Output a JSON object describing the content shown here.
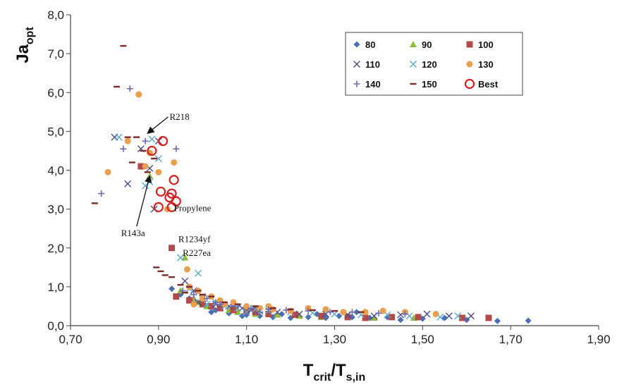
{
  "chart_data": {
    "type": "scatter",
    "title": "",
    "ylabel": {
      "main": "Ja",
      "sub": "opt"
    },
    "xlabel": {
      "main1": "T",
      "sub1": "crit",
      "sep": "/T",
      "sub2": "s,in"
    },
    "xlim": [
      0.7,
      1.9
    ],
    "ylim": [
      0.0,
      8.0
    ],
    "x_ticks": [
      0.7,
      0.9,
      1.1,
      1.3,
      1.5,
      1.7,
      1.9
    ],
    "x_tick_labels": [
      "0,70",
      "0,90",
      "1,10",
      "1,30",
      "1,50",
      "1,70",
      "1,90"
    ],
    "y_ticks": [
      0,
      1,
      2,
      3,
      4,
      5,
      6,
      7,
      8
    ],
    "y_tick_labels": [
      "0,0",
      "1,0",
      "2,0",
      "3,0",
      "4,0",
      "5,0",
      "6,0",
      "7,0",
      "8,0"
    ],
    "grid": false,
    "legend_position": "top-right",
    "series": [
      {
        "name": "80",
        "marker": "diamond",
        "color": "#4a6fb5",
        "points": [
          [
            0.93,
            0.95
          ],
          [
            0.95,
            0.8
          ],
          [
            0.97,
            0.7
          ],
          [
            1.0,
            0.55
          ],
          [
            1.03,
            0.4
          ],
          [
            1.06,
            0.32
          ],
          [
            1.1,
            0.28
          ],
          [
            1.13,
            0.25
          ],
          [
            1.16,
            0.22
          ],
          [
            1.2,
            0.2
          ],
          [
            1.24,
            0.22
          ],
          [
            1.28,
            0.2
          ],
          [
            1.31,
            0.25
          ],
          [
            1.34,
            0.22
          ],
          [
            1.38,
            0.2
          ],
          [
            1.42,
            0.22
          ],
          [
            1.45,
            0.15
          ],
          [
            1.5,
            0.18
          ],
          [
            1.55,
            0.2
          ],
          [
            1.6,
            0.15
          ],
          [
            1.67,
            0.12
          ],
          [
            1.74,
            0.13
          ],
          [
            1.07,
            0.5
          ],
          [
            1.12,
            0.45
          ],
          [
            1.18,
            0.3
          ],
          [
            1.26,
            0.3
          ],
          [
            1.35,
            0.35
          ],
          [
            0.98,
            0.6
          ],
          [
            1.02,
            0.35
          ],
          [
            1.09,
            0.25
          ]
        ]
      },
      {
        "name": "90",
        "marker": "triangle",
        "color": "#8dbb3a",
        "points": [
          [
            0.88,
            3.85
          ],
          [
            0.93,
            2.0
          ],
          [
            0.96,
            1.75
          ],
          [
            0.95,
            0.9
          ],
          [
            0.98,
            0.7
          ],
          [
            1.01,
            0.5
          ],
          [
            1.04,
            0.45
          ],
          [
            1.08,
            0.35
          ],
          [
            1.12,
            0.3
          ],
          [
            1.17,
            0.28
          ],
          [
            1.22,
            0.25
          ],
          [
            1.27,
            0.22
          ],
          [
            1.33,
            0.25
          ],
          [
            1.39,
            0.2
          ],
          [
            1.48,
            0.2
          ],
          [
            0.99,
            0.6
          ],
          [
            1.06,
            0.4
          ]
        ]
      },
      {
        "name": "100",
        "marker": "square",
        "color": "#b34a4a",
        "points": [
          [
            0.86,
            4.1
          ],
          [
            0.93,
            2.0
          ],
          [
            0.94,
            0.75
          ],
          [
            0.97,
            0.65
          ],
          [
            1.0,
            0.55
          ],
          [
            1.04,
            0.45
          ],
          [
            1.07,
            0.4
          ],
          [
            1.1,
            0.38
          ],
          [
            1.15,
            0.3
          ],
          [
            1.21,
            0.28
          ],
          [
            1.27,
            0.25
          ],
          [
            1.33,
            0.22
          ],
          [
            1.37,
            0.2
          ],
          [
            1.43,
            0.22
          ],
          [
            1.49,
            0.22
          ],
          [
            1.59,
            0.2
          ],
          [
            1.65,
            0.2
          ],
          [
            1.02,
            0.5
          ],
          [
            1.12,
            0.35
          ]
        ]
      },
      {
        "name": "110",
        "marker": "x",
        "color": "#4a4a8a",
        "points": [
          [
            0.8,
            4.85
          ],
          [
            0.83,
            3.65
          ],
          [
            0.86,
            4.55
          ],
          [
            0.88,
            4.05
          ],
          [
            0.89,
            3.0
          ],
          [
            0.9,
            4.75
          ],
          [
            0.96,
            1.15
          ],
          [
            0.98,
            0.9
          ],
          [
            1.0,
            0.7
          ],
          [
            1.03,
            0.55
          ],
          [
            1.06,
            0.5
          ],
          [
            1.09,
            0.45
          ],
          [
            1.13,
            0.38
          ],
          [
            1.17,
            0.35
          ],
          [
            1.22,
            0.3
          ],
          [
            1.28,
            0.3
          ],
          [
            1.33,
            0.28
          ],
          [
            1.39,
            0.25
          ],
          [
            1.45,
            0.28
          ],
          [
            1.51,
            0.3
          ],
          [
            1.56,
            0.25
          ],
          [
            1.61,
            0.25
          ],
          [
            0.99,
            0.6
          ],
          [
            1.11,
            0.4
          ]
        ]
      },
      {
        "name": "120",
        "marker": "x",
        "color": "#5aa8c8",
        "points": [
          [
            0.81,
            4.85
          ],
          [
            0.87,
            3.6
          ],
          [
            0.88,
            3.7
          ],
          [
            0.885,
            4.8
          ],
          [
            0.9,
            4.3
          ],
          [
            0.95,
            1.75
          ],
          [
            0.99,
            1.35
          ],
          [
            0.97,
            0.95
          ],
          [
            1.0,
            0.75
          ],
          [
            1.03,
            0.6
          ],
          [
            1.05,
            0.5
          ],
          [
            1.08,
            0.45
          ],
          [
            1.12,
            0.42
          ],
          [
            1.15,
            0.38
          ],
          [
            1.2,
            0.35
          ],
          [
            1.25,
            0.33
          ],
          [
            1.3,
            0.3
          ],
          [
            1.36,
            0.28
          ],
          [
            1.42,
            0.28
          ],
          [
            1.47,
            0.25
          ],
          [
            1.54,
            0.22
          ],
          [
            1.58,
            0.25
          ],
          [
            1.01,
            0.55
          ],
          [
            1.1,
            0.35
          ]
        ]
      },
      {
        "name": "130",
        "marker": "circle",
        "color": "#e8a050",
        "points": [
          [
            0.785,
            3.95
          ],
          [
            0.83,
            4.75
          ],
          [
            0.855,
            5.95
          ],
          [
            0.87,
            4.1
          ],
          [
            0.88,
            4.45
          ],
          [
            0.9,
            3.95
          ],
          [
            0.92,
            3.0
          ],
          [
            0.935,
            4.2
          ],
          [
            0.965,
            1.45
          ],
          [
            0.97,
            1.0
          ],
          [
            0.99,
            0.9
          ],
          [
            1.0,
            0.7
          ],
          [
            1.02,
            0.75
          ],
          [
            1.04,
            0.65
          ],
          [
            1.07,
            0.6
          ],
          [
            1.1,
            0.5
          ],
          [
            1.13,
            0.45
          ],
          [
            1.16,
            0.42
          ],
          [
            1.2,
            0.38
          ],
          [
            1.24,
            0.45
          ],
          [
            1.28,
            0.42
          ],
          [
            1.32,
            0.35
          ],
          [
            1.37,
            0.35
          ],
          [
            1.41,
            0.38
          ],
          [
            1.46,
            0.35
          ],
          [
            1.53,
            0.3
          ],
          [
            1.05,
            0.55
          ],
          [
            1.15,
            0.5
          ],
          [
            0.98,
            0.55
          ]
        ]
      },
      {
        "name": "140",
        "marker": "plus",
        "color": "#6a6ab0",
        "points": [
          [
            0.77,
            3.4
          ],
          [
            0.82,
            4.55
          ],
          [
            0.835,
            6.1
          ],
          [
            0.87,
            4.75
          ],
          [
            0.94,
            4.55
          ],
          [
            0.955,
            0.9
          ],
          [
            0.98,
            0.8
          ],
          [
            1.01,
            0.7
          ],
          [
            1.04,
            0.55
          ],
          [
            1.08,
            0.5
          ],
          [
            1.11,
            0.45
          ],
          [
            1.15,
            0.42
          ],
          [
            1.19,
            0.4
          ],
          [
            1.24,
            0.38
          ],
          [
            1.29,
            0.35
          ],
          [
            1.34,
            0.35
          ],
          [
            1.4,
            0.32
          ],
          [
            1.46,
            0.3
          ],
          [
            1.03,
            0.6
          ],
          [
            1.13,
            0.35
          ]
        ]
      },
      {
        "name": "150",
        "marker": "dash",
        "color": "#7a2a2a",
        "points": [
          [
            0.755,
            3.15
          ],
          [
            0.805,
            6.15
          ],
          [
            0.82,
            7.2
          ],
          [
            0.83,
            4.85
          ],
          [
            0.84,
            4.2
          ],
          [
            0.85,
            4.85
          ],
          [
            0.865,
            4.5
          ],
          [
            0.875,
            3.95
          ],
          [
            0.89,
            4.3
          ],
          [
            0.895,
            1.5
          ],
          [
            0.905,
            1.4
          ],
          [
            0.915,
            1.3
          ],
          [
            0.93,
            1.25
          ],
          [
            0.95,
            1.05
          ],
          [
            0.97,
            1.0
          ],
          [
            0.99,
            0.9
          ],
          [
            1.02,
            0.75
          ],
          [
            1.05,
            0.6
          ],
          [
            1.08,
            0.55
          ],
          [
            1.12,
            0.5
          ],
          [
            1.16,
            0.45
          ],
          [
            1.2,
            0.42
          ],
          [
            1.25,
            0.4
          ],
          [
            1.3,
            0.38
          ],
          [
            1.36,
            0.35
          ],
          [
            0.96,
            0.85
          ],
          [
            1.0,
            0.8
          ]
        ]
      },
      {
        "name": "Best",
        "marker": "ring",
        "color": "#d42020",
        "points": [
          [
            0.91,
            4.75
          ],
          [
            0.885,
            4.5
          ],
          [
            0.935,
            3.75
          ],
          [
            0.905,
            3.45
          ],
          [
            0.93,
            3.4
          ],
          [
            0.925,
            3.3
          ],
          [
            0.94,
            3.2
          ],
          [
            0.9,
            3.05
          ],
          [
            0.93,
            3.05
          ]
        ]
      }
    ],
    "annotations": [
      {
        "text": "R218",
        "x": 0.925,
        "y": 5.3,
        "arrow_to": [
          0.875,
          4.95
        ]
      },
      {
        "text": "R143a",
        "x": 0.815,
        "y": 2.3,
        "arrow_to": [
          0.88,
          3.85
        ]
      },
      {
        "text": "Propylene",
        "x": 0.935,
        "y": 2.95
      },
      {
        "text": "R1234yf",
        "x": 0.945,
        "y": 2.15
      },
      {
        "text": "R227ea",
        "x": 0.955,
        "y": 1.8
      }
    ]
  }
}
